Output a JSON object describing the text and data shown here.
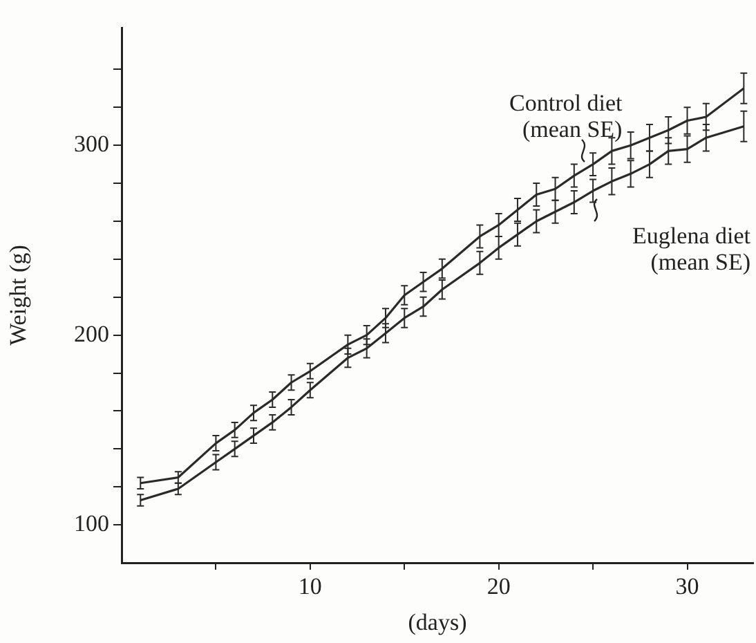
{
  "chart_data": {
    "type": "line",
    "xlabel": "(days)",
    "ylabel": "Weight (g)",
    "x": [
      1,
      3,
      5,
      6,
      7,
      8,
      9,
      10,
      12,
      13,
      14,
      15,
      16,
      17,
      19,
      20,
      21,
      22,
      23,
      24,
      25,
      26,
      27,
      28,
      29,
      30,
      31,
      33
    ],
    "series": [
      {
        "color": "#2a2a2a",
        "values": [
          122,
          125,
          143,
          150,
          159,
          166,
          175,
          181,
          195,
          200,
          209,
          221,
          228,
          235,
          252,
          258,
          266,
          274,
          277,
          284,
          290,
          297,
          300,
          304,
          308,
          313,
          315,
          330
        ],
        "errors": [
          3,
          3,
          4,
          4,
          4,
          4,
          4,
          4,
          5,
          5,
          5,
          5,
          5,
          5,
          6,
          6,
          6,
          6,
          6,
          6,
          6,
          7,
          7,
          7,
          7,
          7,
          7,
          8
        ]
      },
      {
        "color": "#2a2a2a",
        "values": [
          113,
          119,
          133,
          140,
          147,
          154,
          162,
          171,
          188,
          193,
          201,
          209,
          215,
          224,
          238,
          246,
          253,
          260,
          265,
          270,
          276,
          281,
          285,
          290,
          297,
          298,
          304,
          310
        ],
        "errors": [
          3,
          3,
          4,
          4,
          4,
          4,
          4,
          4,
          5,
          5,
          5,
          5,
          5,
          5,
          6,
          6,
          6,
          6,
          6,
          6,
          6,
          7,
          7,
          7,
          7,
          7,
          7,
          8
        ]
      }
    ],
    "annotations": [
      {
        "text": "Control diet\n(mean SE)",
        "x": 24.5,
        "y": 287
      },
      {
        "text": "Euglena diet\n(mean SE)",
        "x": 25,
        "y": 276
      }
    ],
    "xlim": [
      0,
      33.5
    ],
    "xticks": [
      {
        "value": 5,
        "label": null
      },
      10,
      {
        "value": 15,
        "label": null
      },
      20,
      {
        "value": 25,
        "label": null
      },
      30
    ],
    "ylim": [
      80,
      362
    ],
    "yticks": [
      100,
      {
        "value": 120,
        "label": null
      },
      {
        "value": 140,
        "label": null
      },
      {
        "value": 160,
        "label": null
      },
      {
        "value": 180,
        "label": null
      },
      200,
      {
        "value": 220,
        "label": null
      },
      {
        "value": 240,
        "label": null
      },
      {
        "value": 260,
        "label": null
      },
      {
        "value": 280,
        "label": null
      },
      300,
      {
        "value": 320,
        "label": null
      },
      {
        "value": 340,
        "label": null
      }
    ],
    "grid": false,
    "legend": false,
    "marker": "none",
    "line_style": "solid"
  }
}
